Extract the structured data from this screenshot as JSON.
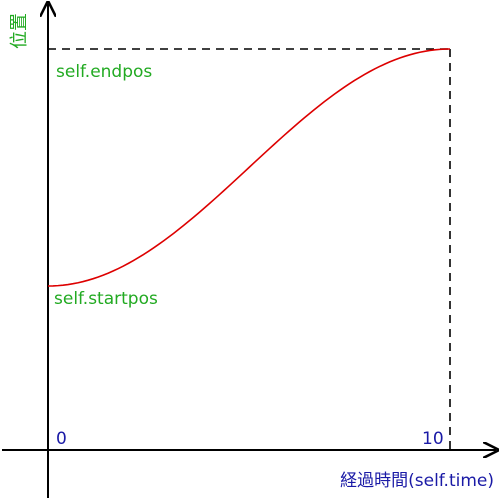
{
  "labels": {
    "y_axis": "位置",
    "x_axis": "経過時間(self.time)",
    "origin": "0",
    "x_end": "10",
    "end_value": "self.endpos",
    "start_value": "self.startpos"
  },
  "colors": {
    "axis": "#000000",
    "curve": "#dd0000",
    "guide": "#000000",
    "green_text": "#22aa22",
    "blue_text": "#1a1aa6"
  },
  "curve": {
    "type": "ease-in-out",
    "t_start": 0,
    "t_end": 10
  }
}
